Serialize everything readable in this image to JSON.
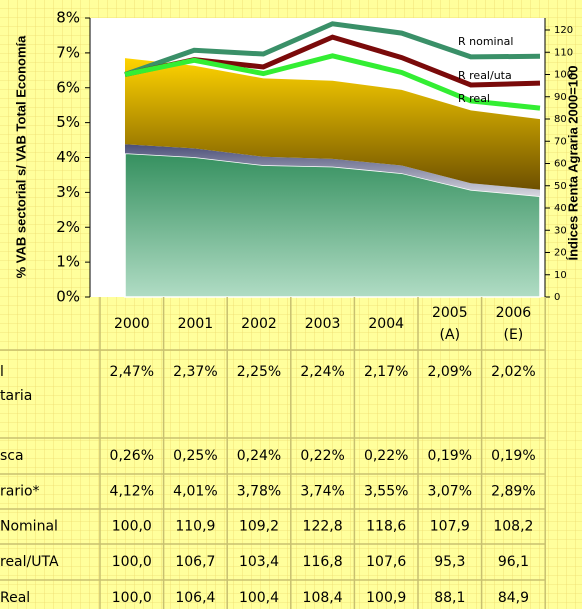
{
  "chart_data": {
    "type": "stacked_area_line",
    "categories": [
      "2000",
      "2001",
      "2002",
      "2003",
      "2004",
      "2005\n(A)",
      "2006\n(E)"
    ],
    "y_label": "% VAB sectorial s/ VAB Total Economía",
    "y2_label": "Índices Renta Agraria 2000=100",
    "ylim": [
      0,
      8
    ],
    "yticks": [
      {
        "value": 0,
        "label": "0%"
      },
      {
        "value": 1,
        "label": "1%"
      },
      {
        "value": 2,
        "label": "2%"
      },
      {
        "value": 3,
        "label": "3%"
      },
      {
        "value": 4,
        "label": "4%"
      },
      {
        "value": 5,
        "label": "5%"
      },
      {
        "value": 6,
        "label": "6%"
      },
      {
        "value": 7,
        "label": "7%"
      },
      {
        "value": 8,
        "label": "8%"
      }
    ],
    "y2lim": [
      0,
      120
    ],
    "y2ticks": [
      0,
      10,
      20,
      30,
      40,
      50,
      60,
      70,
      80,
      90,
      100,
      110,
      120
    ],
    "series": [
      {
        "name": "l\ntaria",
        "kind": "area",
        "color": "#f0b400",
        "values": [
          2.47,
          2.37,
          2.25,
          2.24,
          2.17,
          2.09,
          2.02
        ],
        "value_labels": [
          "2,47%",
          "2,37%",
          "2,25%",
          "2,24%",
          "2,17%",
          "2,09%",
          "2,02%"
        ]
      },
      {
        "name": "sca",
        "kind": "area",
        "color": "#6a7090",
        "values": [
          0.26,
          0.25,
          0.24,
          0.22,
          0.22,
          0.19,
          0.19
        ],
        "value_labels": [
          "0,26%",
          "0,25%",
          "0,24%",
          "0,22%",
          "0,22%",
          "0,19%",
          "0,19%"
        ]
      },
      {
        "name": "rario*",
        "kind": "area",
        "color": "#3a9a6a",
        "values": [
          4.12,
          4.01,
          3.78,
          3.74,
          3.55,
          3.07,
          2.89
        ],
        "value_labels": [
          "4,12%",
          "4,01%",
          "3,78%",
          "3,74%",
          "3,55%",
          "3,07%",
          "2,89%"
        ]
      },
      {
        "name": "Nominal",
        "kind": "line",
        "axis": "y2",
        "color": "#3a9068",
        "annotation": "R nominal",
        "values": [
          100.0,
          110.9,
          109.2,
          122.8,
          118.6,
          107.9,
          108.2
        ],
        "value_labels": [
          "100,0",
          "110,9",
          "109,2",
          "122,8",
          "118,6",
          "107,9",
          "108,2"
        ]
      },
      {
        "name": "real/UTA",
        "kind": "line",
        "axis": "y2",
        "color": "#7a0a0a",
        "annotation": "R real/uta",
        "values": [
          100.0,
          106.7,
          103.4,
          116.8,
          107.6,
          95.3,
          96.1
        ],
        "value_labels": [
          "100,0",
          "106,7",
          "103,4",
          "116,8",
          "107,6",
          "95,3",
          "96,1"
        ]
      },
      {
        "name": "Real",
        "kind": "line",
        "axis": "y2",
        "color": "#33ee33",
        "annotation": "R real",
        "values": [
          100.0,
          106.4,
          100.4,
          108.4,
          100.9,
          88.1,
          84.9
        ],
        "value_labels": [
          "100,0",
          "106,4",
          "100,4",
          "108,4",
          "100,9",
          "88,1",
          "84,9"
        ]
      }
    ]
  }
}
